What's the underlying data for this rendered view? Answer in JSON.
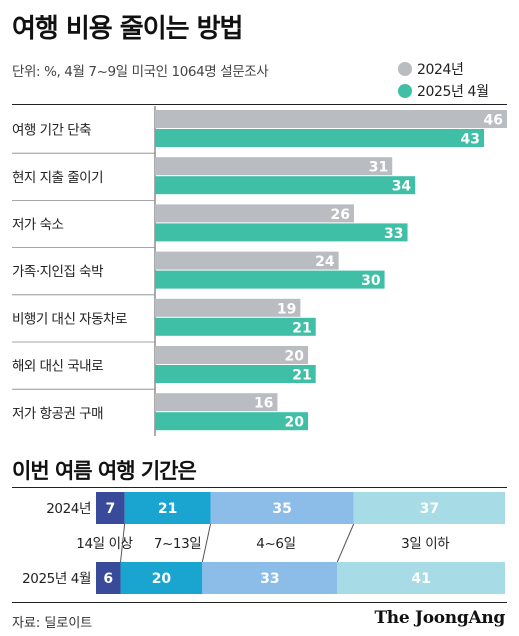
{
  "title": "여행 비용 줄이는 방법",
  "subtitle": "단위: %, 4월 7~9일 미국인 1064명 설문조사",
  "legend": [
    {
      "label": "2024년",
      "color": "#b9bcc1"
    },
    {
      "label": "2025년 4월",
      "color": "#3fbfa6"
    }
  ],
  "section2_title": "이번 여름 여행 기간은",
  "source": "자료: 딜로이트",
  "brand": "The JoongAng",
  "chart_data": [
    {
      "type": "bar",
      "orientation": "horizontal",
      "title": "여행 비용 줄이는 방법",
      "unit": "%",
      "xlim": [
        0,
        46
      ],
      "categories": [
        "여행 기간 단축",
        "현지 지출 줄이기",
        "저가 숙소",
        "가족·지인집 숙박",
        "비행기 대신 자동차로",
        "해외 대신 국내로",
        "저가 항공권 구매"
      ],
      "series": [
        {
          "name": "2024년",
          "color": "#b9bcc1",
          "values": [
            46,
            31,
            26,
            24,
            19,
            20,
            16
          ]
        },
        {
          "name": "2025년 4월",
          "color": "#3fbfa6",
          "values": [
            43,
            34,
            33,
            30,
            21,
            21,
            20
          ]
        }
      ]
    },
    {
      "type": "bar",
      "orientation": "horizontal",
      "stacked": true,
      "title": "이번 여름 여행 기간은",
      "unit": "%",
      "rows": [
        "2024년",
        "2025년 4월"
      ],
      "segments": [
        {
          "name": "14일 이상",
          "color": "#3a4a9b"
        },
        {
          "name": "7~13일",
          "color": "#19a5cf"
        },
        {
          "name": "4~6일",
          "color": "#8cbde9"
        },
        {
          "name": "3일 이하",
          "color": "#a7dbe6"
        }
      ],
      "values": [
        [
          7,
          21,
          35,
          37
        ],
        [
          6,
          20,
          33,
          41
        ]
      ]
    }
  ]
}
